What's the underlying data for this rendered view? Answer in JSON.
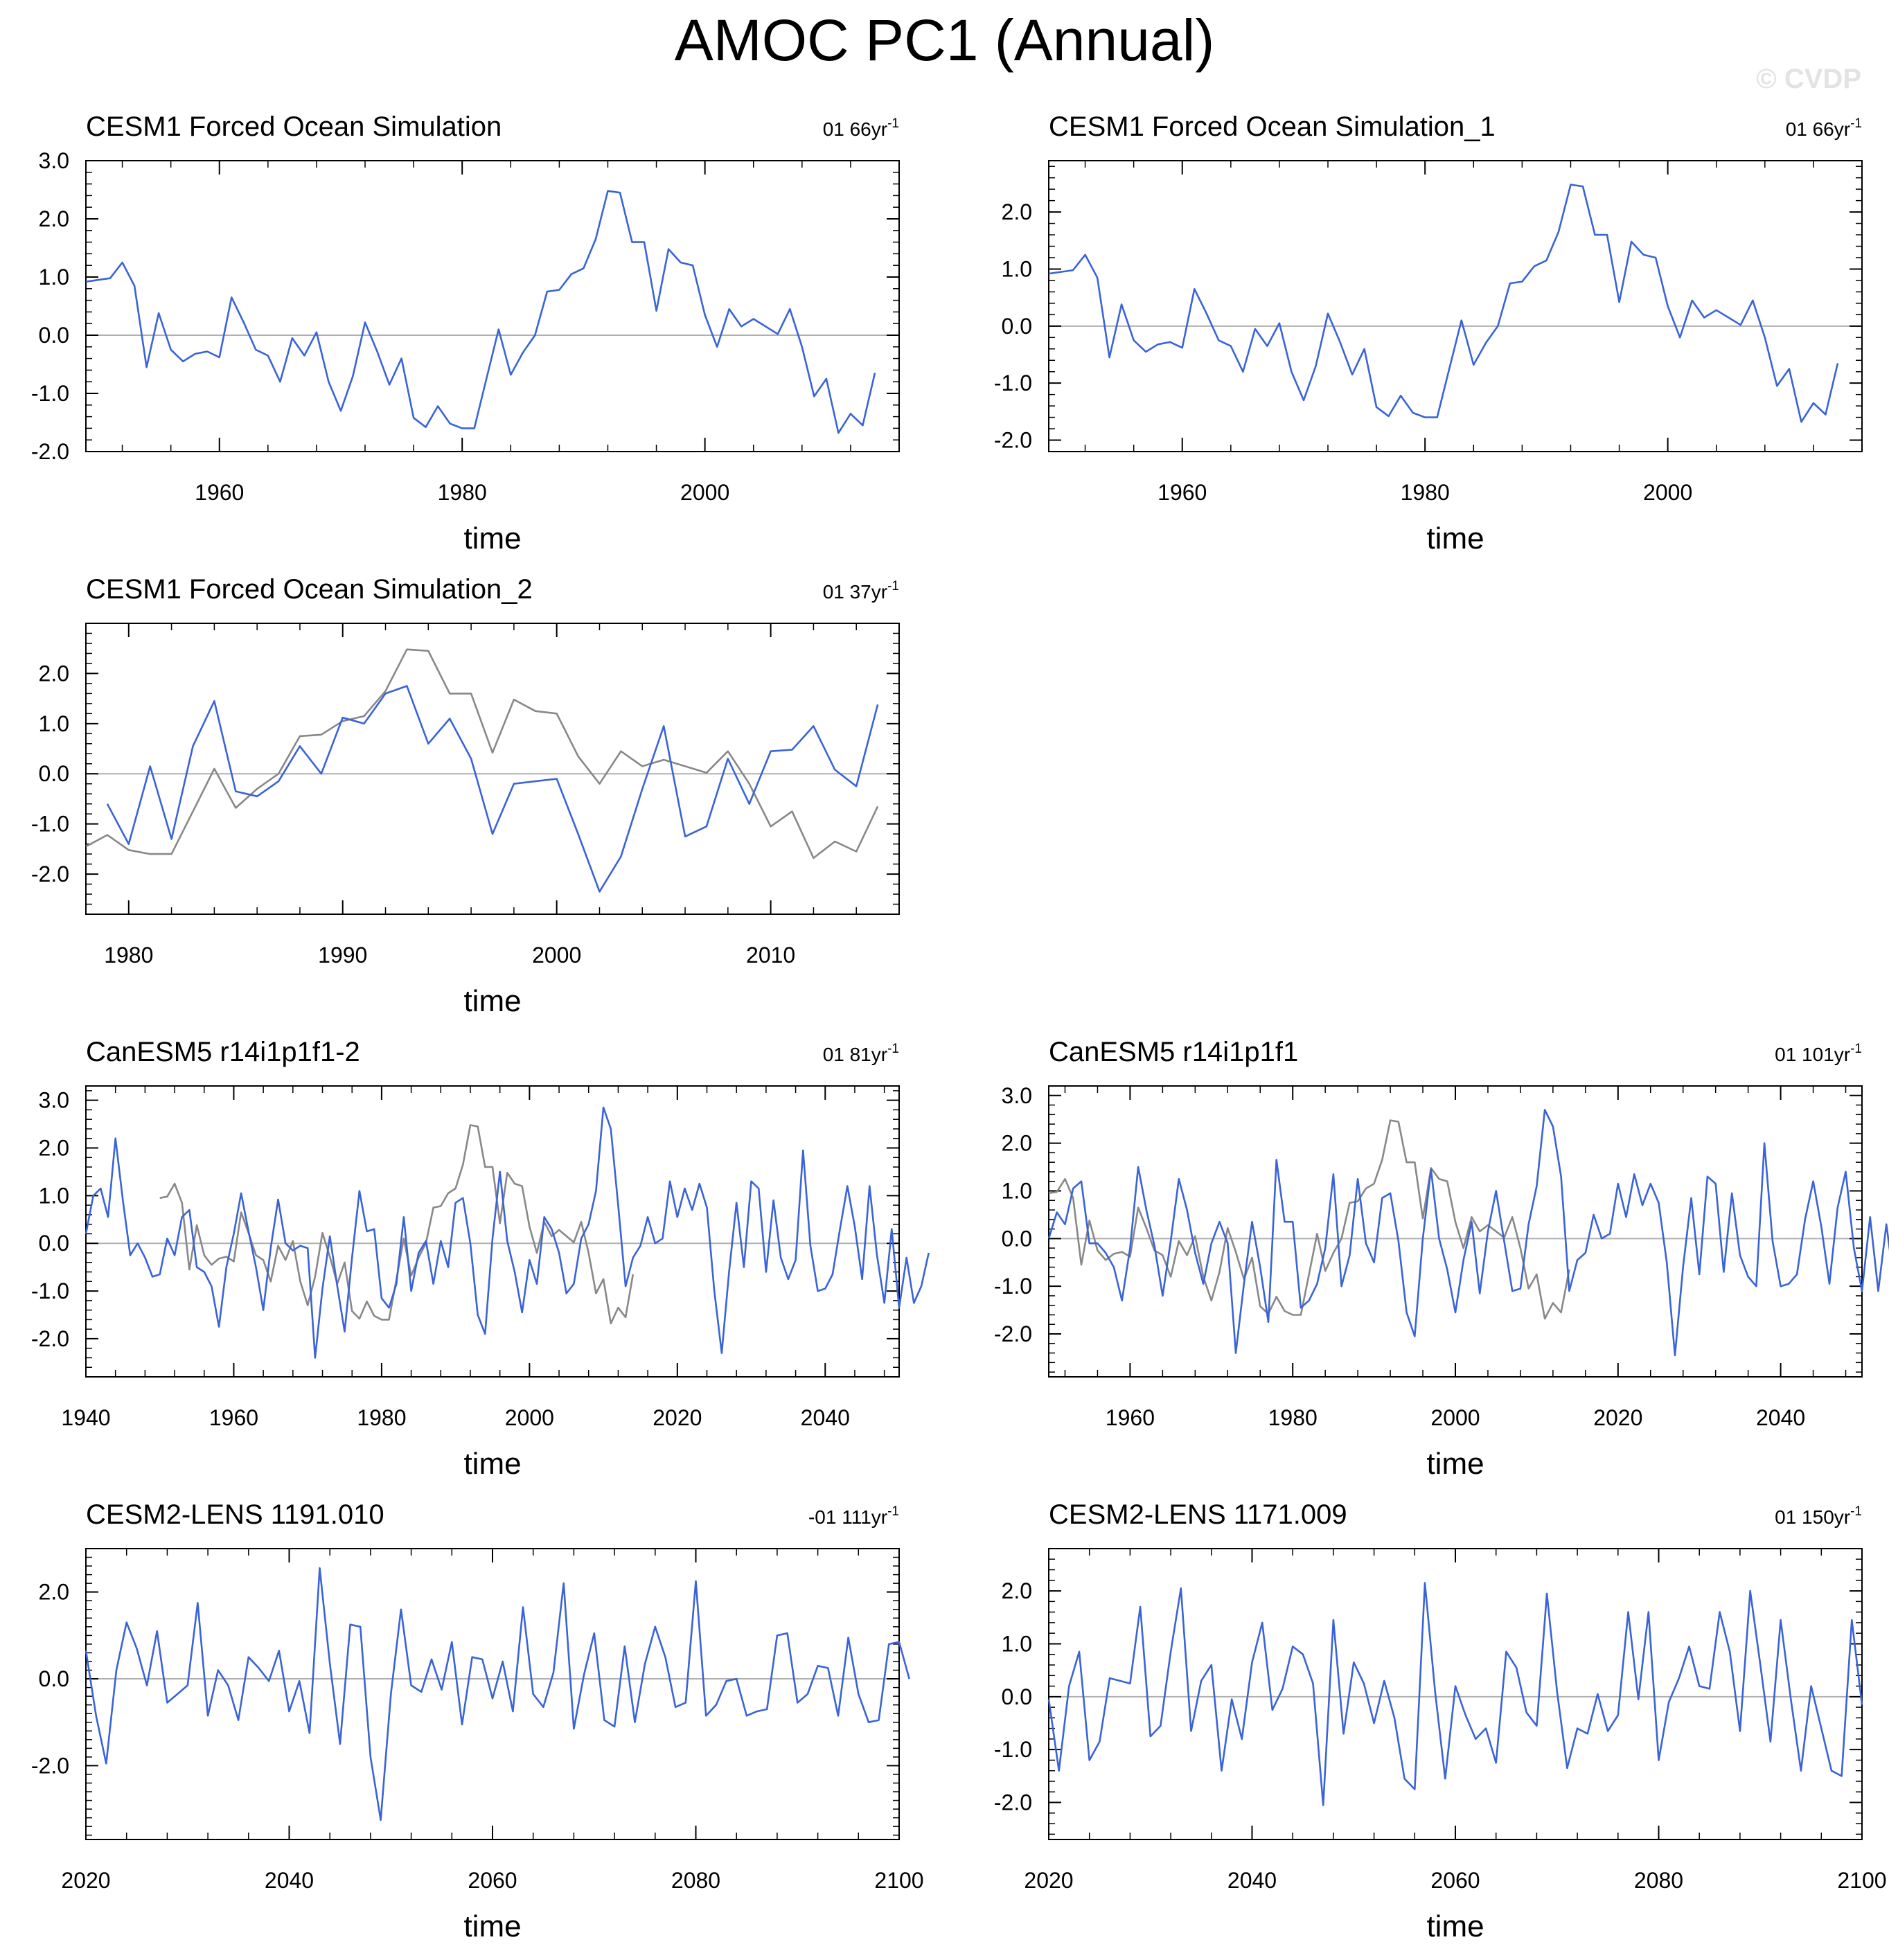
{
  "title": "AMOC PC1 (Annual)",
  "watermark": "© CVDP",
  "colors": {
    "model_line": "#3a63d8",
    "obs_line": "#888888",
    "zero_line": "#b0b0b0",
    "axis": "#000000"
  },
  "chart_data": [
    {
      "type": "line",
      "title": "CESM1 Forced Ocean Simulation",
      "trend_label": "01 66yr",
      "trend_sup": "-1",
      "xlabel": "time",
      "xlim": [
        1949,
        2016
      ],
      "ylim": [
        -2.0,
        3.0
      ],
      "yticks": [
        -2.0,
        -1.0,
        0.0,
        1.0,
        2.0,
        3.0
      ],
      "xticks": [
        1960,
        1980,
        2000
      ],
      "series": [
        {
          "name": "model",
          "x_start": 1949,
          "values": [
            0.92,
            0.95,
            0.98,
            1.25,
            0.85,
            -0.55,
            0.38,
            -0.25,
            -0.45,
            -0.32,
            -0.28,
            -0.38,
            0.65,
            0.22,
            -0.25,
            -0.35,
            -0.8,
            -0.05,
            -0.35,
            0.05,
            -0.8,
            -1.3,
            -0.7,
            0.22,
            -0.28,
            -0.85,
            -0.4,
            -1.42,
            -1.58,
            -1.22,
            -1.52,
            -1.6,
            -1.6,
            -0.75,
            0.1,
            -0.68,
            -0.3,
            0.0,
            0.75,
            0.78,
            1.05,
            1.15,
            1.65,
            2.48,
            2.45,
            1.6,
            1.6,
            0.42,
            1.48,
            1.25,
            1.2,
            0.35,
            -0.2,
            0.45,
            0.15,
            0.28,
            0.15,
            0.02,
            0.45,
            -0.2,
            -1.05,
            -0.75,
            -1.68,
            -1.35,
            -1.55,
            -0.65
          ]
        }
      ]
    },
    {
      "type": "line",
      "title": "CESM1 Forced Ocean Simulation_1",
      "trend_label": "01 66yr",
      "trend_sup": "-1",
      "xlabel": "time",
      "xlim": [
        1949,
        2016
      ],
      "ylim": [
        -2.2,
        2.9
      ],
      "yticks": [
        -2.0,
        -1.0,
        0.0,
        1.0,
        2.0
      ],
      "xticks": [
        1960,
        1980,
        2000
      ],
      "series": [
        {
          "name": "model",
          "x_start": 1949,
          "values": [
            0.92,
            0.95,
            0.98,
            1.25,
            0.85,
            -0.55,
            0.38,
            -0.25,
            -0.45,
            -0.32,
            -0.28,
            -0.38,
            0.65,
            0.22,
            -0.25,
            -0.35,
            -0.8,
            -0.05,
            -0.35,
            0.05,
            -0.8,
            -1.3,
            -0.7,
            0.22,
            -0.28,
            -0.85,
            -0.4,
            -1.42,
            -1.58,
            -1.22,
            -1.52,
            -1.6,
            -1.6,
            -0.75,
            0.1,
            -0.68,
            -0.3,
            0.0,
            0.75,
            0.78,
            1.05,
            1.15,
            1.65,
            2.48,
            2.45,
            1.6,
            1.6,
            0.42,
            1.48,
            1.25,
            1.2,
            0.35,
            -0.2,
            0.45,
            0.15,
            0.28,
            0.15,
            0.02,
            0.45,
            -0.2,
            -1.05,
            -0.75,
            -1.68,
            -1.35,
            -1.55,
            -0.65
          ]
        }
      ]
    },
    {
      "type": "line",
      "title": "CESM1 Forced Ocean Simulation_2",
      "trend_label": "01 37yr",
      "trend_sup": "-1",
      "xlabel": "time",
      "xlim": [
        1978,
        2016
      ],
      "ylim": [
        -2.8,
        3.0
      ],
      "yticks": [
        -2.0,
        -1.0,
        0.0,
        1.0,
        2.0
      ],
      "xticks": [
        1980,
        1990,
        2000,
        2010
      ],
      "series": [
        {
          "name": "model",
          "x_start": 1979,
          "values": [
            -0.6,
            -1.4,
            0.15,
            -1.3,
            0.55,
            1.45,
            -0.35,
            -0.45,
            -0.15,
            0.55,
            0.0,
            1.12,
            1.0,
            1.6,
            1.75,
            0.6,
            1.1,
            0.3,
            -1.2,
            -0.2,
            -0.15,
            -0.1,
            -1.2,
            -2.35,
            -1.65,
            -0.3,
            0.95,
            -1.25,
            -1.05,
            0.3,
            -0.6,
            0.45,
            0.48,
            0.95,
            0.08,
            -0.25,
            1.38
          ]
        },
        {
          "name": "observed",
          "x_start": 1978,
          "values": [
            -1.45,
            -1.22,
            -1.52,
            -1.6,
            -1.6,
            -0.75,
            0.1,
            -0.68,
            -0.3,
            0.0,
            0.75,
            0.78,
            1.05,
            1.15,
            1.65,
            2.48,
            2.45,
            1.6,
            1.6,
            0.42,
            1.48,
            1.25,
            1.2,
            0.35,
            -0.2,
            0.45,
            0.15,
            0.28,
            0.15,
            0.02,
            0.45,
            -0.2,
            -1.05,
            -0.75,
            -1.68,
            -1.35,
            -1.55,
            -0.65
          ]
        }
      ]
    },
    {
      "type": "line",
      "title": "CanESM5 r14i1p1f1-2",
      "trend_label": "01 81yr",
      "trend_sup": "-1",
      "xlabel": "time",
      "xlim": [
        1940,
        2050
      ],
      "ylim": [
        -2.8,
        3.3
      ],
      "yticks": [
        -2.0,
        -1.0,
        0.0,
        1.0,
        2.0,
        3.0
      ],
      "xticks": [
        1940,
        1960,
        1980,
        2000,
        2020,
        2040
      ],
      "series": [
        {
          "name": "model",
          "x_start": 1940,
          "values": [
            0.2,
            1.0,
            1.15,
            0.55,
            2.2,
            0.9,
            -0.25,
            0.0,
            -0.3,
            -0.7,
            -0.65,
            0.1,
            -0.25,
            0.55,
            0.7,
            -0.5,
            -0.6,
            -0.9,
            -1.75,
            -0.5,
            0.2,
            1.05,
            0.25,
            -0.5,
            -1.4,
            -0.1,
            0.92,
            0.0,
            -0.15,
            -0.05,
            -0.1,
            -2.4,
            -0.95,
            0.15,
            -0.9,
            -1.85,
            -0.3,
            1.1,
            0.25,
            0.3,
            -1.15,
            -1.35,
            -0.85,
            0.55,
            -1.0,
            -0.2,
            0.05,
            -0.85,
            0.05,
            -0.5,
            0.85,
            0.95,
            0.0,
            -1.5,
            -1.9,
            0.1,
            1.5,
            0.05,
            -0.6,
            -1.45,
            -0.35,
            -0.85,
            0.55,
            0.3,
            -0.2,
            -1.05,
            -0.85,
            0.1,
            0.4,
            1.1,
            2.85,
            2.4,
            0.8,
            -0.9,
            -0.3,
            -0.05,
            0.55,
            0.0,
            0.1,
            1.3,
            0.55,
            1.15,
            0.7,
            1.25,
            0.75,
            -1.0,
            -2.3,
            -0.6,
            0.85,
            -0.5,
            1.3,
            1.15,
            -0.6,
            0.9,
            -0.3,
            -0.75,
            -0.35,
            1.95,
            -0.05,
            -1.0,
            -0.95,
            -0.65,
            0.3,
            1.2,
            0.35,
            -0.75,
            1.2,
            -0.25,
            -1.25,
            0.3,
            -1.35,
            -0.3,
            -1.25,
            -0.9,
            -0.2
          ]
        },
        {
          "name": "observed",
          "x_start": 1950,
          "values": [
            0.95,
            0.98,
            1.25,
            0.85,
            -0.55,
            0.38,
            -0.25,
            -0.45,
            -0.32,
            -0.28,
            -0.38,
            0.65,
            0.22,
            -0.25,
            -0.35,
            -0.8,
            -0.05,
            -0.35,
            0.05,
            -0.8,
            -1.3,
            -0.7,
            0.22,
            -0.28,
            -0.85,
            -0.4,
            -1.42,
            -1.58,
            -1.22,
            -1.52,
            -1.6,
            -1.6,
            -0.75,
            0.1,
            -0.68,
            -0.3,
            0.0,
            0.75,
            0.78,
            1.05,
            1.15,
            1.65,
            2.48,
            2.45,
            1.6,
            1.6,
            0.42,
            1.48,
            1.25,
            1.2,
            0.35,
            -0.2,
            0.45,
            0.15,
            0.28,
            0.15,
            0.02,
            0.45,
            -0.2,
            -1.05,
            -0.75,
            -1.68,
            -1.35,
            -1.55,
            -0.65
          ]
        }
      ]
    },
    {
      "type": "line",
      "title": "CanESM5 r14i1p1f1",
      "trend_label": "01 101yr",
      "trend_sup": "-1",
      "xlabel": "time",
      "xlim": [
        1950,
        2050
      ],
      "ylim": [
        -2.9,
        3.2
      ],
      "yticks": [
        -2.0,
        -1.0,
        0.0,
        1.0,
        2.0,
        3.0
      ],
      "xticks": [
        1960,
        1980,
        2000,
        2020,
        2040
      ],
      "series": [
        {
          "name": "model",
          "x_start": 1950,
          "values": [
            0.0,
            0.55,
            0.3,
            1.05,
            1.2,
            -0.1,
            -0.1,
            -0.3,
            -0.6,
            -1.3,
            -0.2,
            1.5,
            0.6,
            -0.15,
            -1.2,
            -0.05,
            1.25,
            0.6,
            -0.3,
            -0.95,
            -0.1,
            0.35,
            -0.1,
            -2.4,
            -0.95,
            0.35,
            -0.6,
            -1.75,
            1.65,
            0.35,
            0.35,
            -1.45,
            -1.3,
            -0.95,
            -0.2,
            1.35,
            -1.0,
            -0.35,
            1.25,
            -0.1,
            -0.5,
            0.85,
            0.95,
            -0.05,
            -1.55,
            -2.05,
            0.0,
            1.45,
            0.0,
            -0.65,
            -1.55,
            -0.45,
            0.35,
            -1.15,
            0.15,
            1.0,
            -0.05,
            -1.1,
            -1.05,
            0.3,
            1.1,
            2.7,
            2.35,
            1.3,
            -1.1,
            -0.45,
            -0.3,
            0.5,
            0.0,
            0.1,
            1.15,
            0.45,
            1.35,
            0.7,
            1.15,
            0.75,
            -0.5,
            -2.45,
            -0.6,
            0.85,
            -0.75,
            1.3,
            1.15,
            -0.7,
            0.95,
            -0.35,
            -0.8,
            -1.0,
            2.0,
            -0.05,
            -1.0,
            -0.95,
            -0.75,
            0.4,
            1.2,
            0.25,
            -0.95,
            0.65,
            1.4,
            -0.2,
            -1.1,
            0.45,
            -1.1,
            0.3,
            -1.0,
            -0.6,
            0.05
          ]
        },
        {
          "name": "observed",
          "x_start": 1950,
          "values": [
            0.95,
            0.98,
            1.25,
            0.85,
            -0.55,
            0.38,
            -0.25,
            -0.45,
            -0.32,
            -0.28,
            -0.38,
            0.65,
            0.22,
            -0.25,
            -0.35,
            -0.8,
            -0.05,
            -0.35,
            0.05,
            -0.8,
            -1.3,
            -0.7,
            0.22,
            -0.28,
            -0.85,
            -0.4,
            -1.42,
            -1.58,
            -1.22,
            -1.52,
            -1.6,
            -1.6,
            -0.75,
            0.1,
            -0.68,
            -0.3,
            0.0,
            0.75,
            0.78,
            1.05,
            1.15,
            1.65,
            2.48,
            2.45,
            1.6,
            1.6,
            0.42,
            1.48,
            1.25,
            1.2,
            0.35,
            -0.2,
            0.45,
            0.15,
            0.28,
            0.15,
            0.02,
            0.45,
            -0.2,
            -1.05,
            -0.75,
            -1.68,
            -1.35,
            -1.55,
            -0.65
          ]
        }
      ]
    },
    {
      "type": "line",
      "title": "CESM2-LENS 1191.010",
      "trend_label": "-01 111yr",
      "trend_sup": "-1",
      "xlabel": "time",
      "xlim": [
        2020,
        2100
      ],
      "ylim": [
        -3.7,
        3.0
      ],
      "yticks": [
        -2.0,
        0.0,
        2.0
      ],
      "xticks": [
        2020,
        2040,
        2060,
        2080,
        2100
      ],
      "series": [
        {
          "name": "model",
          "x_start": 2020,
          "values": [
            0.65,
            -0.85,
            -1.95,
            0.2,
            1.3,
            0.7,
            -0.15,
            1.1,
            -0.55,
            -0.35,
            -0.15,
            1.75,
            -0.85,
            0.2,
            -0.15,
            -0.95,
            0.5,
            0.25,
            -0.05,
            0.65,
            -0.75,
            -0.05,
            -1.25,
            2.55,
            0.35,
            -1.5,
            1.25,
            1.2,
            -1.8,
            -3.25,
            -0.35,
            1.6,
            -0.15,
            -0.3,
            0.45,
            -0.25,
            0.85,
            -1.05,
            0.5,
            0.45,
            -0.45,
            0.4,
            -0.75,
            1.65,
            -0.35,
            -0.65,
            0.15,
            2.2,
            -1.15,
            0.1,
            1.05,
            -0.95,
            -1.1,
            0.75,
            -1.0,
            0.35,
            1.2,
            0.5,
            -0.65,
            -0.55,
            2.25,
            -0.85,
            -0.6,
            -0.05,
            0.0,
            -0.85,
            -0.75,
            -0.7,
            1.0,
            1.05,
            -0.55,
            -0.35,
            0.3,
            0.25,
            -0.85,
            0.95,
            -0.35,
            -1.0,
            -0.95,
            0.8,
            0.85,
            0.0
          ]
        }
      ]
    },
    {
      "type": "line",
      "title": "CESM2-LENS 1171.009",
      "trend_label": "01 150yr",
      "trend_sup": "-1",
      "xlabel": "time",
      "xlim": [
        2020,
        2100
      ],
      "ylim": [
        -2.7,
        2.8
      ],
      "yticks": [
        -2.0,
        -1.0,
        0.0,
        1.0,
        2.0
      ],
      "xticks": [
        2020,
        2040,
        2060,
        2080,
        2100
      ],
      "series": [
        {
          "name": "model",
          "x_start": 2020,
          "values": [
            -0.05,
            -1.4,
            0.2,
            0.85,
            -1.2,
            -0.85,
            0.35,
            0.3,
            0.25,
            1.7,
            -0.75,
            -0.55,
            0.85,
            2.05,
            -0.65,
            0.3,
            0.6,
            -1.4,
            -0.05,
            -0.8,
            0.65,
            1.4,
            -0.25,
            0.15,
            0.95,
            0.8,
            0.25,
            -2.05,
            1.45,
            -0.7,
            0.65,
            0.25,
            -0.5,
            0.3,
            -0.4,
            -1.55,
            -1.75,
            2.15,
            0.1,
            -1.55,
            0.2,
            -0.35,
            -0.8,
            -0.6,
            -1.25,
            0.85,
            0.55,
            -0.3,
            -0.55,
            1.95,
            0.1,
            -1.35,
            -0.6,
            -0.7,
            0.05,
            -0.65,
            -0.35,
            1.6,
            -0.05,
            1.6,
            -1.2,
            -0.1,
            0.35,
            0.95,
            0.2,
            0.15,
            1.6,
            0.85,
            -0.65,
            2.0,
            0.6,
            -0.85,
            1.45,
            -0.05,
            -1.4,
            0.2,
            -0.6,
            -1.4,
            -1.5,
            1.45,
            -0.15
          ]
        }
      ]
    }
  ]
}
